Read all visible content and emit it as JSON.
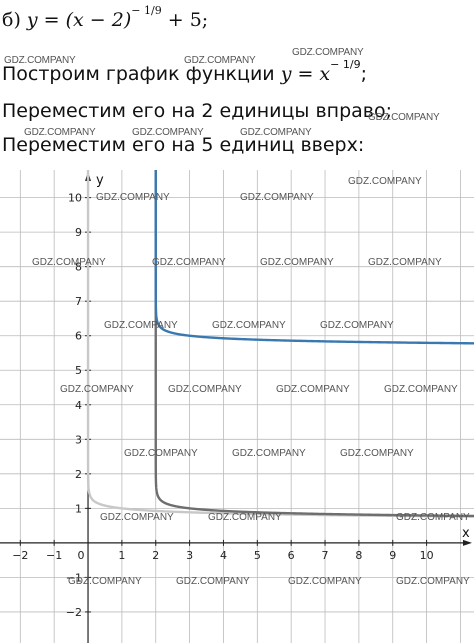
{
  "problem": {
    "label": "б)",
    "equation_main": "y = (x − 2)",
    "exponent": "− 1/9",
    "equation_tail": "+ 5;"
  },
  "steps": [
    {
      "text": "Построим график функции",
      "formula": "y = x",
      "exponent": "− 1/9",
      "end": ";"
    },
    {
      "text": "Переместим его на 2 единицы вправо;"
    },
    {
      "text": "Переместим его на 5 единиц вверх:"
    }
  ],
  "watermark": "GDZ.COMPANY",
  "chart_data": {
    "type": "line",
    "xlabel": "x",
    "ylabel": "y",
    "xlim": [
      -2.6,
      11.4
    ],
    "ylim": [
      -2.9,
      10.8
    ],
    "x_ticks": [
      -2,
      -1,
      0,
      1,
      2,
      3,
      4,
      5,
      6,
      7,
      8,
      9,
      10
    ],
    "y_ticks": [
      -2,
      -1,
      1,
      2,
      3,
      4,
      5,
      6,
      7,
      8,
      9,
      10
    ],
    "tick_labels_x": [
      "−2",
      "−1",
      "0",
      "1",
      "2",
      "3",
      "4",
      "5",
      "6",
      "7",
      "8",
      "9",
      "10"
    ],
    "tick_labels_y": [
      "−2",
      "−1",
      "1",
      "2",
      "3",
      "4",
      "5",
      "6",
      "7",
      "8",
      "9",
      "10"
    ],
    "grid": true,
    "series": [
      {
        "function": "x^(-1/9)",
        "shift_x": 0,
        "shift_y": 0,
        "color": "#c8c8c8"
      },
      {
        "function": "(x-2)^(-1/9)",
        "shift_x": 2,
        "shift_y": 0,
        "color": "#6e6e6e"
      },
      {
        "function": "(x-2)^(-1/9) + 5",
        "shift_x": 2,
        "shift_y": 5,
        "color": "#3a78b0"
      }
    ],
    "asymptote_x": 2,
    "colors": {
      "grid": "#bbbbbb",
      "axis": "#222222"
    }
  }
}
